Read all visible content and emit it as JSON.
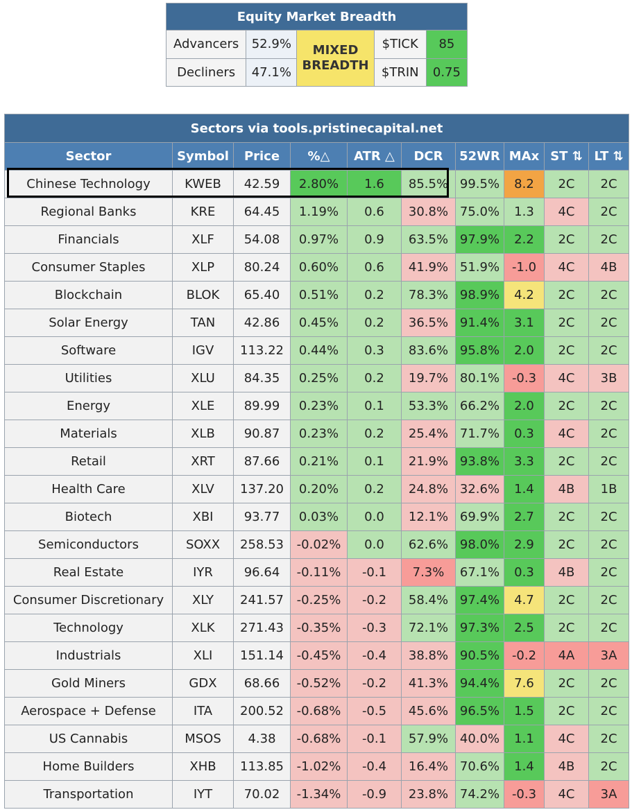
{
  "breadth": {
    "title": "Equity Market Breadth",
    "advancers_label": "Advancers",
    "advancers_pct": "52.9%",
    "decliners_label": "Decliners",
    "decliners_pct": "47.1%",
    "status": "MIXED BREADTH",
    "tick_label": "$TICK",
    "tick_value": "85",
    "trin_label": "$TRIN",
    "trin_value": "0.75"
  },
  "sectors": {
    "caption": "Sectors via tools.pristinecapital.net",
    "headers": [
      "Sector",
      "Symbol",
      "Price",
      "%△",
      "ATR △",
      "DCR",
      "52WR",
      "MAx",
      "ST ⇅",
      "LT ⇅"
    ],
    "colors": {
      "g": "#b7e2b1",
      "r": "#f4c3c0",
      "gd": "#58c95a",
      "rd": "#f79c98",
      "ye": "#f5e47a",
      "or": "#f2a444"
    },
    "rows": [
      {
        "name": "Chinese Technology",
        "symbol": "KWEB",
        "price": "42.59",
        "pct": "2.80%",
        "atr": "1.6",
        "dcr": "85.5%",
        "wr": "99.5%",
        "max": "8.2",
        "st": "2C",
        "lt": "2C",
        "c": [
          "gd",
          "gd",
          "g",
          "g",
          "or",
          "g",
          "g"
        ]
      },
      {
        "name": "Regional Banks",
        "symbol": "KRE",
        "price": "64.45",
        "pct": "1.19%",
        "atr": "0.6",
        "dcr": "30.8%",
        "wr": "75.0%",
        "max": "1.3",
        "st": "4C",
        "lt": "2C",
        "c": [
          "g",
          "g",
          "r",
          "g",
          "g",
          "r",
          "g"
        ]
      },
      {
        "name": "Financials",
        "symbol": "XLF",
        "price": "54.08",
        "pct": "0.97%",
        "atr": "0.9",
        "dcr": "63.5%",
        "wr": "97.9%",
        "max": "2.2",
        "st": "2C",
        "lt": "2C",
        "c": [
          "g",
          "g",
          "g",
          "gd",
          "gd",
          "g",
          "g"
        ]
      },
      {
        "name": "Consumer Staples",
        "symbol": "XLP",
        "price": "80.24",
        "pct": "0.60%",
        "atr": "0.6",
        "dcr": "41.9%",
        "wr": "51.9%",
        "max": "-1.0",
        "st": "4C",
        "lt": "4B",
        "c": [
          "g",
          "g",
          "r",
          "g",
          "rd",
          "r",
          "r"
        ]
      },
      {
        "name": "Blockchain",
        "symbol": "BLOK",
        "price": "65.40",
        "pct": "0.51%",
        "atr": "0.2",
        "dcr": "78.3%",
        "wr": "98.9%",
        "max": "4.2",
        "st": "2C",
        "lt": "2C",
        "c": [
          "g",
          "g",
          "g",
          "gd",
          "ye",
          "g",
          "g"
        ]
      },
      {
        "name": "Solar Energy",
        "symbol": "TAN",
        "price": "42.86",
        "pct": "0.45%",
        "atr": "0.2",
        "dcr": "36.5%",
        "wr": "91.4%",
        "max": "3.1",
        "st": "2C",
        "lt": "2C",
        "c": [
          "g",
          "g",
          "r",
          "gd",
          "gd",
          "g",
          "g"
        ]
      },
      {
        "name": "Software",
        "symbol": "IGV",
        "price": "113.22",
        "pct": "0.44%",
        "atr": "0.3",
        "dcr": "83.6%",
        "wr": "95.8%",
        "max": "2.0",
        "st": "2C",
        "lt": "2C",
        "c": [
          "g",
          "g",
          "g",
          "gd",
          "gd",
          "g",
          "g"
        ]
      },
      {
        "name": "Utilities",
        "symbol": "XLU",
        "price": "84.35",
        "pct": "0.25%",
        "atr": "0.2",
        "dcr": "19.7%",
        "wr": "80.1%",
        "max": "-0.3",
        "st": "4C",
        "lt": "3B",
        "c": [
          "g",
          "g",
          "r",
          "g",
          "rd",
          "r",
          "r"
        ]
      },
      {
        "name": "Energy",
        "symbol": "XLE",
        "price": "89.99",
        "pct": "0.23%",
        "atr": "0.1",
        "dcr": "53.3%",
        "wr": "66.2%",
        "max": "2.0",
        "st": "2C",
        "lt": "2C",
        "c": [
          "g",
          "g",
          "g",
          "g",
          "gd",
          "g",
          "g"
        ]
      },
      {
        "name": "Materials",
        "symbol": "XLB",
        "price": "90.87",
        "pct": "0.23%",
        "atr": "0.2",
        "dcr": "25.4%",
        "wr": "71.7%",
        "max": "0.3",
        "st": "4C",
        "lt": "2C",
        "c": [
          "g",
          "g",
          "r",
          "g",
          "gd",
          "r",
          "g"
        ]
      },
      {
        "name": "Retail",
        "symbol": "XRT",
        "price": "87.66",
        "pct": "0.21%",
        "atr": "0.1",
        "dcr": "21.9%",
        "wr": "93.8%",
        "max": "3.3",
        "st": "2C",
        "lt": "2C",
        "c": [
          "g",
          "g",
          "r",
          "gd",
          "gd",
          "g",
          "g"
        ]
      },
      {
        "name": "Health Care",
        "symbol": "XLV",
        "price": "137.20",
        "pct": "0.20%",
        "atr": "0.2",
        "dcr": "24.8%",
        "wr": "32.6%",
        "max": "1.4",
        "st": "4B",
        "lt": "1B",
        "c": [
          "g",
          "g",
          "r",
          "r",
          "gd",
          "r",
          "g"
        ]
      },
      {
        "name": "Biotech",
        "symbol": "XBI",
        "price": "93.77",
        "pct": "0.03%",
        "atr": "0.0",
        "dcr": "12.1%",
        "wr": "69.9%",
        "max": "2.7",
        "st": "2C",
        "lt": "2C",
        "c": [
          "g",
          "g",
          "r",
          "g",
          "gd",
          "g",
          "g"
        ]
      },
      {
        "name": "Semiconductors",
        "symbol": "SOXX",
        "price": "258.53",
        "pct": "-0.02%",
        "atr": "0.0",
        "dcr": "62.6%",
        "wr": "98.0%",
        "max": "2.9",
        "st": "2C",
        "lt": "2C",
        "c": [
          "r",
          "g",
          "g",
          "gd",
          "gd",
          "g",
          "g"
        ]
      },
      {
        "name": "Real Estate",
        "symbol": "IYR",
        "price": "96.64",
        "pct": "-0.11%",
        "atr": "-0.1",
        "dcr": "7.3%",
        "wr": "67.1%",
        "max": "0.3",
        "st": "4B",
        "lt": "2C",
        "c": [
          "r",
          "r",
          "rd",
          "g",
          "gd",
          "r",
          "g"
        ]
      },
      {
        "name": "Consumer Discretionary",
        "symbol": "XLY",
        "price": "241.57",
        "pct": "-0.25%",
        "atr": "-0.2",
        "dcr": "58.4%",
        "wr": "97.4%",
        "max": "4.7",
        "st": "2C",
        "lt": "2C",
        "c": [
          "r",
          "r",
          "g",
          "gd",
          "ye",
          "g",
          "g"
        ]
      },
      {
        "name": "Technology",
        "symbol": "XLK",
        "price": "271.43",
        "pct": "-0.35%",
        "atr": "-0.3",
        "dcr": "72.1%",
        "wr": "97.3%",
        "max": "2.5",
        "st": "2C",
        "lt": "2C",
        "c": [
          "r",
          "r",
          "g",
          "gd",
          "gd",
          "g",
          "g"
        ]
      },
      {
        "name": "Industrials",
        "symbol": "XLI",
        "price": "151.14",
        "pct": "-0.45%",
        "atr": "-0.4",
        "dcr": "38.8%",
        "wr": "90.5%",
        "max": "-0.2",
        "st": "4A",
        "lt": "3A",
        "c": [
          "r",
          "r",
          "r",
          "gd",
          "rd",
          "rd",
          "rd"
        ]
      },
      {
        "name": "Gold Miners",
        "symbol": "GDX",
        "price": "68.66",
        "pct": "-0.52%",
        "atr": "-0.2",
        "dcr": "41.3%",
        "wr": "94.4%",
        "max": "7.6",
        "st": "2C",
        "lt": "2C",
        "c": [
          "r",
          "r",
          "r",
          "gd",
          "ye",
          "g",
          "g"
        ]
      },
      {
        "name": "Aerospace + Defense",
        "symbol": "ITA",
        "price": "200.52",
        "pct": "-0.68%",
        "atr": "-0.5",
        "dcr": "45.6%",
        "wr": "96.5%",
        "max": "1.5",
        "st": "2C",
        "lt": "2C",
        "c": [
          "r",
          "r",
          "r",
          "gd",
          "gd",
          "g",
          "g"
        ]
      },
      {
        "name": "US Cannabis",
        "symbol": "MSOS",
        "price": "4.38",
        "pct": "-0.68%",
        "atr": "-0.1",
        "dcr": "57.9%",
        "wr": "40.0%",
        "max": "1.1",
        "st": "4C",
        "lt": "2C",
        "c": [
          "r",
          "r",
          "g",
          "r",
          "gd",
          "r",
          "g"
        ]
      },
      {
        "name": "Home Builders",
        "symbol": "XHB",
        "price": "113.85",
        "pct": "-1.02%",
        "atr": "-0.4",
        "dcr": "16.4%",
        "wr": "70.6%",
        "max": "1.4",
        "st": "4B",
        "lt": "2C",
        "c": [
          "r",
          "r",
          "r",
          "g",
          "gd",
          "r",
          "g"
        ]
      },
      {
        "name": "Transportation",
        "symbol": "IYT",
        "price": "70.02",
        "pct": "-1.34%",
        "atr": "-0.9",
        "dcr": "23.8%",
        "wr": "74.2%",
        "max": "-0.3",
        "st": "4C",
        "lt": "3A",
        "c": [
          "r",
          "r",
          "r",
          "g",
          "rd",
          "r",
          "rd"
        ]
      }
    ]
  }
}
